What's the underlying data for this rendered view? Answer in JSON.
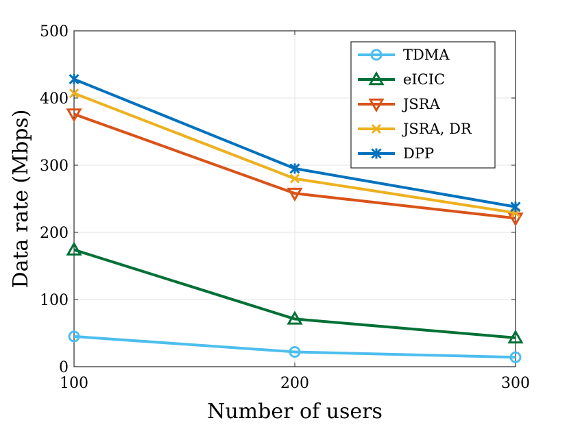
{
  "chart_data": {
    "type": "line",
    "title": "",
    "xlabel": "Number of users",
    "ylabel": "Data rate (Mbps)",
    "x": [
      100,
      200,
      300
    ],
    "xlim": [
      100,
      300
    ],
    "ylim": [
      0,
      500
    ],
    "xticks": [
      100,
      200,
      300
    ],
    "yticks": [
      0,
      100,
      200,
      300,
      400,
      500
    ],
    "grid": true,
    "legend_position": "top-right",
    "series": [
      {
        "name": "TDMA",
        "color": "#4DBEEE",
        "marker": "circle",
        "values": [
          45,
          22,
          14
        ]
      },
      {
        "name": "eICIC",
        "color": "#007036",
        "marker": "triangle-up",
        "values": [
          174,
          71,
          43
        ]
      },
      {
        "name": "JSRA",
        "color": "#D95319",
        "marker": "triangle-down",
        "values": [
          376,
          258,
          221
        ]
      },
      {
        "name": "JSRA, DR",
        "color": "#EDB120",
        "marker": "x",
        "values": [
          407,
          280,
          229
        ]
      },
      {
        "name": "DPP",
        "color": "#0072BD",
        "marker": "asterisk",
        "values": [
          428,
          295,
          238
        ]
      }
    ]
  }
}
